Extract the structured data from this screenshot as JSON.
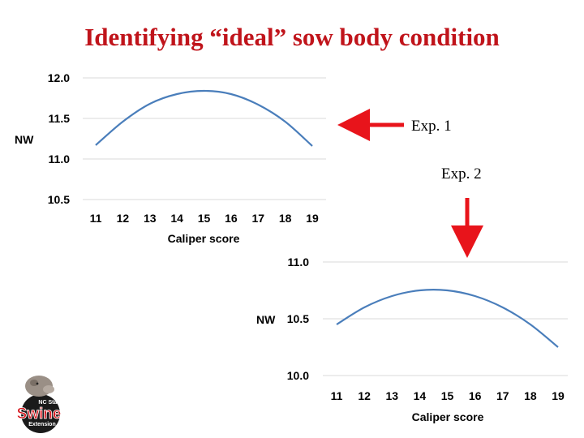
{
  "slide": {
    "title": "Identifying “ideal” sow body condition"
  },
  "annotations": {
    "exp1": "Exp. 1",
    "exp2": "Exp. 2"
  },
  "logo": {
    "line1": "NC State",
    "word": "Swine",
    "line2": "Extension"
  },
  "colors": {
    "title": "#c0141b",
    "series": "#4a7ebb",
    "arrow": "#e8141b",
    "grid": "#d9d9d9"
  },
  "chart_data": [
    {
      "type": "line",
      "title": "",
      "xlabel": "Caliper score",
      "ylabel": "NW",
      "categories": [
        "11",
        "12",
        "13",
        "14",
        "15",
        "16",
        "17",
        "18",
        "19"
      ],
      "yticks": [
        "12.0",
        "11.5",
        "11.0",
        "10.5"
      ],
      "ylim": [
        10.5,
        12.0
      ],
      "grid": true,
      "legend": "none",
      "series": [
        {
          "values": [
            11.17,
            11.46,
            11.68,
            11.8,
            11.84,
            11.8,
            11.67,
            11.46,
            11.16
          ]
        }
      ]
    },
    {
      "type": "line",
      "title": "",
      "xlabel": "Caliper score",
      "ylabel": "NW",
      "categories": [
        "11",
        "12",
        "13",
        "14",
        "15",
        "16",
        "17",
        "18",
        "19"
      ],
      "yticks": [
        "11.0",
        "10.5",
        "10.0"
      ],
      "ylim": [
        10.0,
        11.0
      ],
      "grid": true,
      "legend": "none",
      "series": [
        {
          "values": [
            10.45,
            10.6,
            10.7,
            10.75,
            10.75,
            10.7,
            10.6,
            10.45,
            10.25
          ]
        }
      ]
    }
  ]
}
